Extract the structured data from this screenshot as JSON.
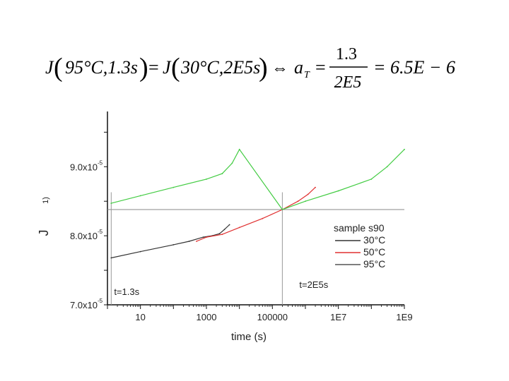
{
  "equation": {
    "lhs_func": "J",
    "lhs_args": "95°C,1.3s",
    "equals": "=",
    "rhs_func": "J",
    "rhs_args": "30°C,2E5s",
    "iff": "⇔",
    "aT_symbol": "a",
    "aT_sub": "T",
    "frac_num": "1.3",
    "frac_den": "2E5",
    "result": "= 6.5E − 6"
  },
  "chart_data": {
    "type": "line",
    "xscale": "log",
    "xlim": [
      1,
      1000000000
    ],
    "ylim": [
      7e-05,
      9.8e-05
    ],
    "xlabel": "time (s)",
    "ylabel_fragments": [
      "J",
      "1)"
    ],
    "x_ticks": [
      {
        "value": 10,
        "label": "10"
      },
      {
        "value": 1000,
        "label": "1000"
      },
      {
        "value": 100000,
        "label": "100000"
      },
      {
        "value": 10000000,
        "label": "1E7"
      },
      {
        "value": 1000000000,
        "label": "1E9"
      }
    ],
    "y_ticks": [
      {
        "value": 7e-05,
        "label": "7.0x10",
        "exp": "-5"
      },
      {
        "value": 8e-05,
        "label": "8.0x10",
        "exp": "-5"
      },
      {
        "value": 9e-05,
        "label": "9.0x10",
        "exp": "-5"
      }
    ],
    "legend": {
      "title": "sample s90",
      "position": "bottom-right",
      "entries": [
        {
          "label": "30°C",
          "color": "#333333"
        },
        {
          "label": "50°C",
          "color": "#e03030"
        },
        {
          "label": "95°C",
          "color": "#555555"
        }
      ]
    },
    "series": [
      {
        "color": "#333333",
        "points": [
          [
            1.3,
            7.68e-05
          ],
          [
            10,
            7.77e-05
          ],
          [
            100,
            7.87e-05
          ],
          [
            300,
            7.92e-05
          ],
          [
            800,
            7.98e-05
          ],
          [
            1500,
            8e-05
          ],
          [
            2500,
            8.03e-05
          ],
          [
            3500,
            8.09e-05
          ],
          [
            5000,
            8.16e-05
          ]
        ]
      },
      {
        "color": "#e03030",
        "points": [
          [
            500,
            7.92e-05
          ],
          [
            1000,
            7.98e-05
          ],
          [
            3000,
            8.02e-05
          ],
          [
            10000,
            8.12e-05
          ],
          [
            50000,
            8.25e-05
          ],
          [
            200000,
            8.38e-05
          ],
          [
            600000,
            8.5e-05
          ],
          [
            1200000,
            8.6e-05
          ],
          [
            2000000,
            8.7e-05
          ]
        ]
      },
      {
        "color": "#44cc44",
        "points": [
          [
            1.3,
            8.47e-05
          ],
          [
            10,
            8.58e-05
          ],
          [
            100,
            8.7e-05
          ],
          [
            1000,
            8.82e-05
          ],
          [
            3000,
            8.9e-05
          ],
          [
            6000,
            9.05e-05
          ],
          [
            10000,
            9.25e-05
          ],
          [
            200000,
            8.38e-05
          ],
          [
            1000000,
            8.5e-05
          ],
          [
            10000000,
            8.65e-05
          ],
          [
            100000000,
            8.82e-05
          ],
          [
            300000000,
            9e-05
          ],
          [
            1000000000,
            9.25e-05
          ]
        ]
      }
    ],
    "reference_lines": {
      "horizontal": 8.38e-05,
      "vertical": [
        1.3,
        200000
      ]
    },
    "annotations": [
      {
        "text": "t=1.3s"
      },
      {
        "text": "t=2E5s"
      }
    ]
  }
}
